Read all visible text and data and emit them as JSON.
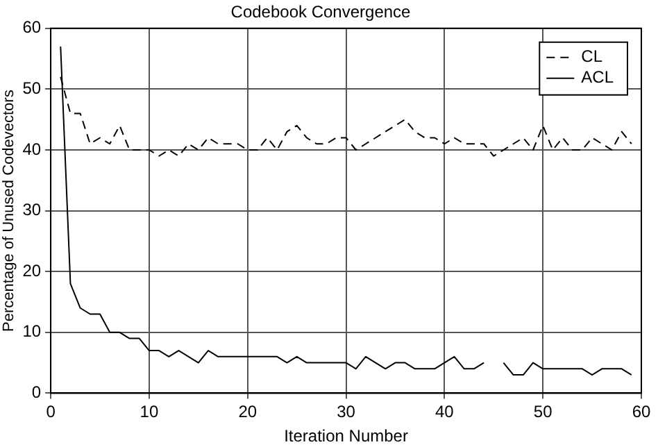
{
  "chart_data": {
    "type": "line",
    "title": "Codebook Convergence",
    "xlabel": "Iteration Number",
    "ylabel": "Percentage of Unused Codevectors",
    "x": [
      1,
      2,
      3,
      4,
      5,
      6,
      7,
      8,
      9,
      10,
      11,
      12,
      13,
      14,
      15,
      16,
      17,
      18,
      19,
      20,
      21,
      22,
      23,
      24,
      25,
      26,
      27,
      28,
      29,
      30,
      31,
      32,
      33,
      34,
      35,
      36,
      37,
      38,
      39,
      40,
      41,
      42,
      43,
      44,
      45,
      46,
      47,
      48,
      49,
      50,
      51,
      52,
      53,
      54,
      55,
      56,
      57,
      58,
      59
    ],
    "series": [
      {
        "name": "CL",
        "color": "#000000",
        "line_style": "dashed",
        "values": [
          52,
          46,
          46,
          41,
          42,
          41,
          44,
          40,
          40,
          40,
          39,
          40,
          39,
          41,
          40,
          42,
          41,
          41,
          41,
          40,
          40,
          42,
          40,
          43,
          44,
          42,
          41,
          41,
          42,
          42,
          40,
          41,
          42,
          43,
          44,
          45,
          43,
          42,
          42,
          41,
          42,
          41,
          41,
          41,
          39,
          40,
          41,
          42,
          40,
          44,
          40,
          42,
          40,
          40,
          42,
          41,
          40,
          43,
          41
        ]
      },
      {
        "name": "ACL",
        "color": "#000000",
        "line_style": "solid",
        "values": [
          57,
          18,
          14,
          13,
          13,
          10,
          10,
          9,
          9,
          7,
          7,
          6,
          7,
          6,
          5,
          7,
          6,
          6,
          6,
          6,
          6,
          6,
          6,
          5,
          6,
          5,
          5,
          5,
          5,
          5,
          4,
          6,
          5,
          4,
          5,
          5,
          4,
          4,
          4,
          5,
          6,
          4,
          4,
          5,
          null,
          5,
          3,
          3,
          5,
          4,
          4,
          4,
          4,
          4,
          3,
          4,
          4,
          4,
          3
        ]
      }
    ],
    "xlim": [
      0,
      60
    ],
    "xticks": [
      0,
      10,
      20,
      30,
      40,
      50,
      60
    ],
    "ylim": [
      0,
      60
    ],
    "yticks": [
      0,
      10,
      20,
      30,
      40,
      50,
      60
    ],
    "grid": true,
    "legend": "top right",
    "marker": "none"
  }
}
